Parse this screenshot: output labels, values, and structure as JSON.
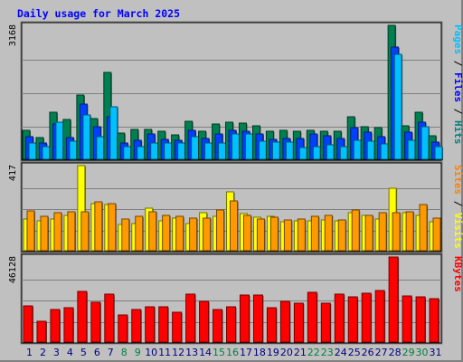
{
  "chart_data": {
    "title": "Daily usage for March 2025",
    "days": [
      {
        "label": "1",
        "weekend": false
      },
      {
        "label": "2",
        "weekend": false
      },
      {
        "label": "3",
        "weekend": false
      },
      {
        "label": "4",
        "weekend": false
      },
      {
        "label": "5",
        "weekend": false
      },
      {
        "label": "6",
        "weekend": false
      },
      {
        "label": "7",
        "weekend": false
      },
      {
        "label": "8",
        "weekend": true
      },
      {
        "label": "9",
        "weekend": true
      },
      {
        "label": "10",
        "weekend": false
      },
      {
        "label": "11",
        "weekend": false
      },
      {
        "label": "12",
        "weekend": false
      },
      {
        "label": "13",
        "weekend": false
      },
      {
        "label": "14",
        "weekend": false
      },
      {
        "label": "15",
        "weekend": true
      },
      {
        "label": "16",
        "weekend": true
      },
      {
        "label": "17",
        "weekend": false
      },
      {
        "label": "18",
        "weekend": false
      },
      {
        "label": "19",
        "weekend": false
      },
      {
        "label": "20",
        "weekend": false
      },
      {
        "label": "21",
        "weekend": false
      },
      {
        "label": "22",
        "weekend": true
      },
      {
        "label": "23",
        "weekend": true
      },
      {
        "label": "24",
        "weekend": false
      },
      {
        "label": "25",
        "weekend": false
      },
      {
        "label": "26",
        "weekend": false
      },
      {
        "label": "27",
        "weekend": false
      },
      {
        "label": "28",
        "weekend": false
      },
      {
        "label": "29",
        "weekend": true
      },
      {
        "label": "30",
        "weekend": true
      },
      {
        "label": "31",
        "weekend": false
      }
    ],
    "panels": [
      {
        "type": "bar",
        "max_label": "3168",
        "ymax": 3168,
        "right_labels": [
          {
            "text": "Pages",
            "color": "#00c0ff"
          },
          {
            "text": " / ",
            "color": "#000000"
          },
          {
            "text": "Files",
            "color": "#0000ff"
          },
          {
            "text": " / ",
            "color": "#000000"
          },
          {
            "text": "Hits",
            "color": "#008080"
          }
        ],
        "series": [
          {
            "name": "Hits",
            "color": "#008050",
            "values": [
              690,
              520,
              1120,
              950,
              1520,
              970,
              2050,
              620,
              710,
              710,
              660,
              570,
              900,
              670,
              830,
              880,
              860,
              790,
              660,
              680,
              660,
              680,
              660,
              660,
              1000,
              780,
              740,
              3168,
              800,
              1120,
              560
            ]
          },
          {
            "name": "Files",
            "color": "#0040ff",
            "values": [
              540,
              390,
              840,
              510,
              1300,
              760,
              1010,
              380,
              450,
              610,
              480,
              460,
              690,
              500,
              610,
              690,
              660,
              600,
              480,
              500,
              490,
              600,
              560,
              490,
              740,
              640,
              530,
              2660,
              640,
              880,
              410
            ]
          },
          {
            "name": "Pages",
            "color": "#00c0ff",
            "values": [
              380,
              300,
              870,
              420,
              1050,
              540,
              1240,
              300,
              310,
              390,
              380,
              390,
              540,
              390,
              390,
              610,
              590,
              420,
              410,
              400,
              280,
              290,
              350,
              310,
              450,
              430,
              370,
              2480,
              440,
              770,
              300
            ]
          }
        ]
      },
      {
        "type": "bar",
        "max_label": "417",
        "ymax": 417,
        "right_labels": [
          {
            "text": "Sites",
            "color": "#ff8000"
          },
          {
            "text": " / ",
            "color": "#000000"
          },
          {
            "text": "Visits",
            "color": "#ffff00"
          }
        ],
        "series": [
          {
            "name": "Visits",
            "color": "#ffff00",
            "values": [
              155,
              145,
              155,
              175,
              417,
              230,
              225,
              130,
              135,
              210,
              145,
              160,
              135,
              185,
              170,
              290,
              180,
              165,
              170,
              140,
              145,
              145,
              150,
              145,
              185,
              175,
              155,
              305,
              185,
              175,
              140
            ]
          },
          {
            "name": "Sites",
            "color": "#ff9900",
            "values": [
              195,
              170,
              185,
              190,
              190,
              240,
              230,
              155,
              170,
              190,
              175,
              170,
              160,
              160,
              200,
              245,
              175,
              155,
              165,
              150,
              155,
              170,
              175,
              150,
              200,
              175,
              185,
              185,
              190,
              225,
              160
            ]
          }
        ]
      },
      {
        "type": "bar",
        "max_label": "46128",
        "ymax": 46128,
        "right_labels": [
          {
            "text": "KBytes",
            "color": "#ff0000"
          }
        ],
        "series": [
          {
            "name": "KBytes",
            "color": "#ff0000",
            "values": [
              19500,
              11200,
              17900,
              18800,
              27500,
              21800,
              26000,
              14600,
              17600,
              19100,
              19300,
              16300,
              25800,
              22000,
              17700,
              19100,
              25500,
              25500,
              18600,
              22200,
              21300,
              27000,
              21000,
              25900,
              24700,
              26500,
              28200,
              46128,
              24900,
              24600,
              23500
            ]
          }
        ]
      }
    ]
  }
}
